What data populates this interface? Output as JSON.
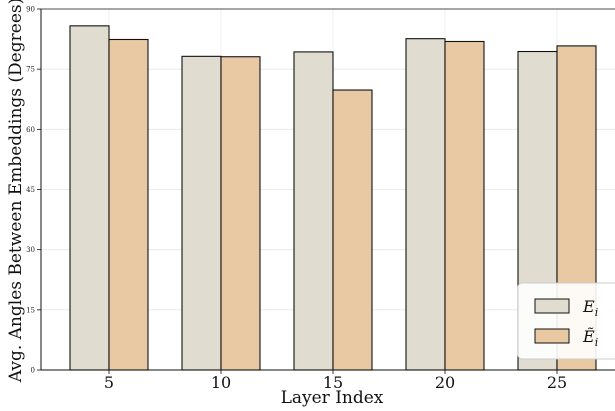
{
  "chart_data": {
    "type": "bar",
    "categories": [
      "5",
      "10",
      "15",
      "20",
      "25"
    ],
    "series": [
      {
        "name": "E_i",
        "values": [
          85.8,
          78.2,
          79.3,
          82.6,
          79.4
        ],
        "color": "#e0ddd0"
      },
      {
        "name": "Ẽ_i",
        "values": [
          82.4,
          78.1,
          69.8,
          81.9,
          80.8
        ],
        "color": "#e8c9a4"
      }
    ],
    "xlabel": "Layer Index",
    "ylabel": "Avg. Angles Between Embeddings (Degrees)",
    "ylim": [
      0,
      90
    ],
    "yticks": [
      0,
      15,
      30,
      45,
      60,
      75,
      90
    ],
    "grid": true,
    "legend_position": "bottom-right"
  },
  "legend": {
    "label_1_base": "E",
    "label_1_sub": "i",
    "label_2_base": "Ẽ",
    "label_2_sub": "i"
  }
}
